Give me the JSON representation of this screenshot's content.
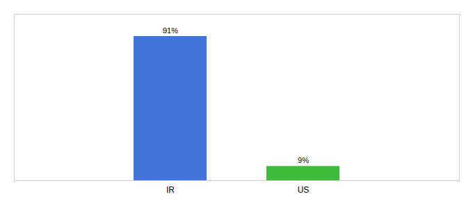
{
  "chart_data": {
    "type": "bar",
    "categories": [
      "IR",
      "US"
    ],
    "values": [
      91,
      9
    ],
    "value_labels": [
      "91%",
      "9%"
    ],
    "colors": [
      "#4472db",
      "#3dbb3d"
    ],
    "ylim": [
      0,
      105
    ],
    "data_labels": true,
    "tick_labels": "x",
    "grid": false
  }
}
